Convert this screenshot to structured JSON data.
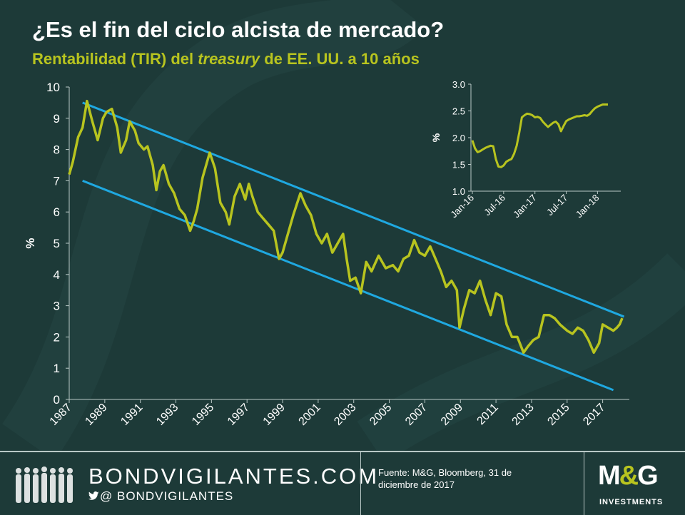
{
  "header": {
    "title": "¿Es el fin del ciclo alcista de mercado?",
    "subtitle_pre": "Rentabilidad (TIR) del ",
    "subtitle_em": "treasury",
    "subtitle_post": " de EE. UU. a 10 años"
  },
  "chart_data": [
    {
      "type": "line",
      "ylabel": "%",
      "xlim": [
        1987,
        2018.5
      ],
      "ylim": [
        0,
        10
      ],
      "yticks": [
        "0",
        "1",
        "2",
        "3",
        "4",
        "5",
        "6",
        "7",
        "8",
        "9",
        "10"
      ],
      "xticks": [
        "1987",
        "1989",
        "1991",
        "1993",
        "1995",
        "1997",
        "1999",
        "2001",
        "2003",
        "2005",
        "2007",
        "2009",
        "2011",
        "2013",
        "2015",
        "2017"
      ],
      "line_color": "#b8c41f",
      "channel_color": "#1fa8e0",
      "series": [
        {
          "x": [
            1987.0,
            1987.2,
            1987.5,
            1987.75,
            1988.0,
            1988.3,
            1988.6,
            1988.9,
            1989.1,
            1989.4,
            1989.7,
            1989.9,
            1990.2,
            1990.4,
            1990.7,
            1990.9,
            1991.2,
            1991.4,
            1991.7,
            1991.9,
            1992.1,
            1992.3,
            1992.6,
            1992.9,
            1993.2,
            1993.5,
            1993.8,
            1994.0,
            1994.2,
            1994.5,
            1994.9,
            1995.2,
            1995.5,
            1995.8,
            1996.0,
            1996.3,
            1996.6,
            1996.9,
            1997.1,
            1997.3,
            1997.6,
            1997.9,
            1998.2,
            1998.5,
            1998.8,
            1999.0,
            1999.3,
            1999.6,
            2000.0,
            2000.3,
            2000.6,
            2000.9,
            2001.2,
            2001.5,
            2001.8,
            2002.1,
            2002.4,
            2002.6,
            2002.8,
            2003.1,
            2003.4,
            2003.7,
            2004.0,
            2004.4,
            2004.8,
            2005.2,
            2005.5,
            2005.8,
            2006.1,
            2006.4,
            2006.7,
            2007.0,
            2007.3,
            2007.6,
            2007.9,
            2008.2,
            2008.5,
            2008.8,
            2008.95,
            2009.2,
            2009.5,
            2009.8,
            2010.1,
            2010.4,
            2010.7,
            2011.0,
            2011.3,
            2011.6,
            2011.9,
            2012.2,
            2012.55,
            2012.8,
            2013.1,
            2013.4,
            2013.7,
            2014.0,
            2014.3,
            2014.6,
            2015.0,
            2015.3,
            2015.6,
            2015.9,
            2016.2,
            2016.5,
            2016.8,
            2017.0,
            2017.3,
            2017.6,
            2017.8,
            2017.95,
            2018.1
          ],
          "y": [
            7.2,
            7.6,
            8.4,
            8.7,
            9.55,
            8.9,
            8.3,
            9.0,
            9.2,
            9.3,
            8.7,
            7.9,
            8.3,
            8.9,
            8.6,
            8.2,
            8.0,
            8.1,
            7.5,
            6.7,
            7.3,
            7.5,
            6.9,
            6.6,
            6.1,
            5.9,
            5.4,
            5.7,
            6.1,
            7.1,
            7.9,
            7.4,
            6.3,
            6.0,
            5.6,
            6.5,
            6.9,
            6.4,
            6.9,
            6.5,
            6.0,
            5.8,
            5.6,
            5.4,
            4.5,
            4.7,
            5.3,
            5.9,
            6.6,
            6.2,
            5.9,
            5.3,
            5.0,
            5.3,
            4.7,
            5.0,
            5.3,
            4.5,
            3.8,
            3.9,
            3.4,
            4.4,
            4.1,
            4.6,
            4.2,
            4.3,
            4.1,
            4.5,
            4.6,
            5.1,
            4.7,
            4.6,
            4.9,
            4.5,
            4.1,
            3.6,
            3.8,
            3.5,
            2.3,
            2.9,
            3.5,
            3.4,
            3.8,
            3.2,
            2.7,
            3.4,
            3.3,
            2.4,
            2.0,
            2.0,
            1.5,
            1.7,
            1.9,
            2.0,
            2.7,
            2.7,
            2.6,
            2.4,
            2.2,
            2.1,
            2.3,
            2.2,
            1.9,
            1.5,
            1.8,
            2.4,
            2.3,
            2.2,
            2.3,
            2.4,
            2.6
          ]
        }
      ],
      "channel": [
        {
          "x": [
            1987.75,
            2018.2
          ],
          "y": [
            9.5,
            2.65
          ]
        },
        {
          "x": [
            1987.75,
            2017.6
          ],
          "y": [
            7.0,
            0.3
          ]
        }
      ]
    },
    {
      "type": "line",
      "ylabel": "%",
      "ylim": [
        1.0,
        3.0
      ],
      "yticks": [
        "1.0",
        "1.5",
        "2.0",
        "2.5",
        "3.0"
      ],
      "xticks": [
        "Jan-16",
        "Jul-16",
        "Jan-17",
        "Jul-17",
        "Jan-18"
      ],
      "series": [
        {
          "x": [
            0,
            0.5,
            1,
            1.5,
            2,
            2.5,
            3,
            3.5,
            4,
            4.5,
            5,
            5.5,
            6,
            6.5,
            7,
            7.5,
            8,
            8.5,
            9,
            9.5,
            10,
            10.5,
            11,
            11.5,
            12,
            12.5,
            13,
            13.5,
            14,
            14.5,
            15,
            15.5,
            16,
            16.5,
            17,
            17.5,
            18,
            18.5,
            19,
            19.5,
            20,
            20.5,
            21,
            21.5,
            22,
            22.5,
            23,
            23.5,
            24,
            24.5,
            25,
            25.5,
            26
          ],
          "y": [
            1.95,
            1.8,
            1.73,
            1.75,
            1.78,
            1.81,
            1.83,
            1.85,
            1.84,
            1.6,
            1.46,
            1.45,
            1.48,
            1.55,
            1.58,
            1.6,
            1.7,
            1.85,
            2.1,
            2.38,
            2.42,
            2.45,
            2.44,
            2.42,
            2.38,
            2.39,
            2.37,
            2.3,
            2.25,
            2.2,
            2.24,
            2.28,
            2.3,
            2.25,
            2.12,
            2.22,
            2.31,
            2.34,
            2.36,
            2.38,
            2.4,
            2.4,
            2.41,
            2.42,
            2.41,
            2.44,
            2.5,
            2.55,
            2.58,
            2.6,
            2.62,
            2.62,
            2.62
          ]
        }
      ]
    }
  ],
  "footer": {
    "brand": "BONDVIGILANTES.COM",
    "handle_prefix": "@",
    "handle": "BONDVIGILANTES",
    "source": "Fuente: M&G, Bloomberg, 31 de diciembre de 2017",
    "logo_m": "M",
    "logo_amp": "&",
    "logo_g": "G",
    "logo_sub": "INVESTMENTS",
    "twitter_icon": "twitter-bird-icon"
  }
}
